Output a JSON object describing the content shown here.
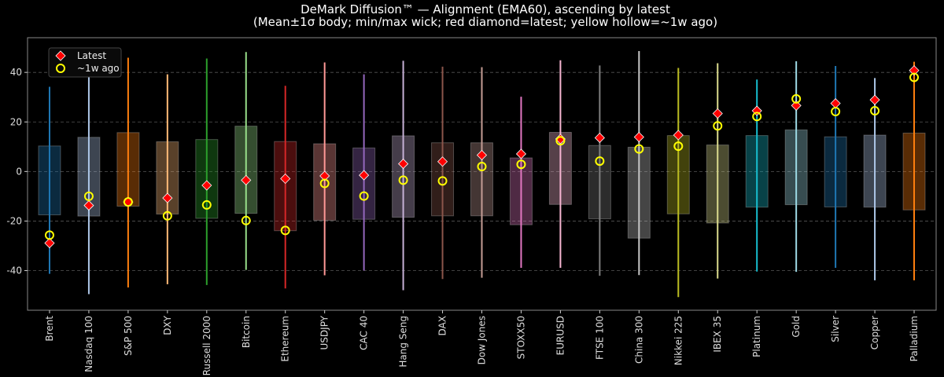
{
  "chart_data": {
    "type": "box-range",
    "title": "DeMark Diffusion™ — Alignment (EMA60), ascending by latest",
    "subtitle": "(Mean±1σ body; min/max wick; red diamond=latest; yellow hollow=~1w ago)",
    "xlabel": "",
    "ylabel": "",
    "ylim": [
      -56,
      54
    ],
    "yticks": [
      -40,
      -20,
      0,
      20,
      40
    ],
    "grid": "horizontal dashed",
    "legend": {
      "placement": "top-left",
      "entries": [
        "Latest",
        "~1w ago"
      ]
    },
    "marker_colors": {
      "latest": "#ff0000",
      "week_ago": "#ffff00"
    },
    "categories": [
      "Brent",
      "Nasdaq 100",
      "S&P 500",
      "DXY",
      "Russell 2000",
      "Bitcoin",
      "Ethereum",
      "USDJPY",
      "CAC 40",
      "Hang Seng",
      "DAX",
      "Dow Jones",
      "STOXX50",
      "EURUSD",
      "FTSE 100",
      "China 300",
      "Nikkei 225",
      "IBEX 35",
      "Platinum",
      "Gold",
      "Silver",
      "Copper",
      "Palladium"
    ],
    "colors": [
      "#1f77b4",
      "#aec7e8",
      "#ff7f0e",
      "#ffbb78",
      "#2ca02c",
      "#98df8a",
      "#d62728",
      "#ff9896",
      "#9467bd",
      "#c5b0d5",
      "#8c564b",
      "#c49c94",
      "#e377c2",
      "#f7b6d2",
      "#7f7f7f",
      "#c7c7c7",
      "#bcbd22",
      "#dbdb8d",
      "#17becf",
      "#9edae5",
      "#1f77b4",
      "#aec7e8",
      "#ff7f0e"
    ],
    "body_high": [
      10.3,
      13.8,
      15.7,
      12.0,
      12.9,
      18.3,
      12.1,
      11.2,
      9.5,
      14.4,
      11.6,
      11.6,
      5.5,
      15.8,
      10.5,
      9.8,
      14.5,
      10.7,
      14.5,
      16.8,
      14.0,
      14.7,
      15.5
    ],
    "body_low": [
      -17.5,
      -18.0,
      -14.0,
      -17.2,
      -18.9,
      -16.9,
      -23.9,
      -19.7,
      -19.3,
      -18.5,
      -17.9,
      -17.9,
      -21.5,
      -13.3,
      -19.1,
      -26.9,
      -17.1,
      -20.8,
      -14.4,
      -13.4,
      -14.3,
      -14.4,
      -15.5
    ],
    "max": [
      34.2,
      42.6,
      45.9,
      39.2,
      45.6,
      48.2,
      34.6,
      44.0,
      39.2,
      44.7,
      42.3,
      42.1,
      30.2,
      44.9,
      42.8,
      48.6,
      41.8,
      43.7,
      37.1,
      44.5,
      42.6,
      37.7,
      44.3
    ],
    "min": [
      -41.3,
      -49.5,
      -46.8,
      -45.5,
      -45.8,
      -39.7,
      -47.2,
      -41.9,
      -40.0,
      -47.9,
      -43.4,
      -42.9,
      -38.9,
      -38.9,
      -42.1,
      -41.8,
      -50.7,
      -43.2,
      -40.4,
      -40.5,
      -38.9,
      -43.9,
      -43.9
    ],
    "latest": [
      -28.9,
      -13.7,
      -12.3,
      -10.7,
      -5.6,
      -3.5,
      -2.9,
      -1.8,
      -1.5,
      3.1,
      4.0,
      6.6,
      7.1,
      13.1,
      13.6,
      13.9,
      14.7,
      23.4,
      24.5,
      26.6,
      27.5,
      28.9,
      40.8
    ],
    "week_ago": [
      -25.7,
      -10.0,
      -12.3,
      -17.9,
      -13.5,
      -19.8,
      -23.8,
      -4.8,
      -9.9,
      -3.5,
      -3.8,
      2.0,
      2.9,
      12.4,
      4.2,
      9.1,
      10.2,
      18.4,
      22.2,
      29.3,
      24.2,
      24.5,
      38.0
    ]
  }
}
